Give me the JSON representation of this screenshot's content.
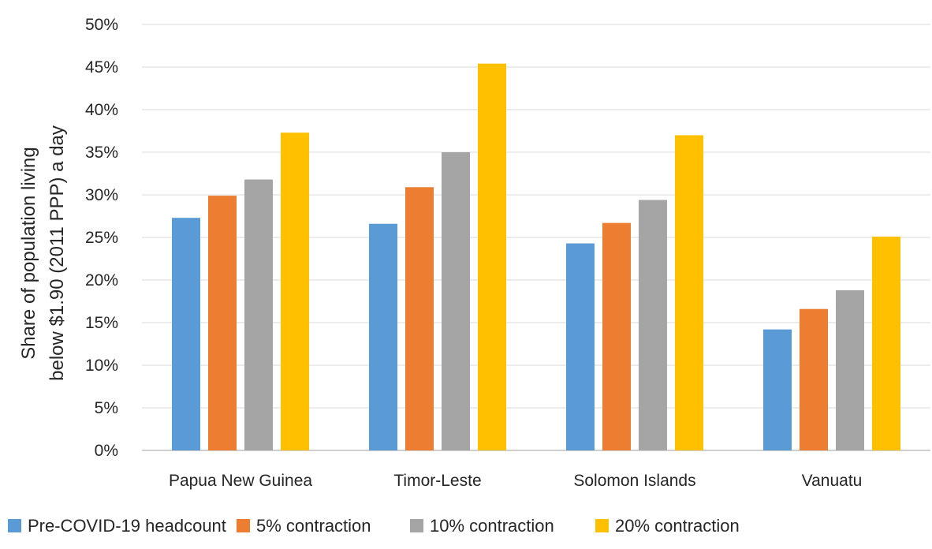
{
  "chart_data": {
    "type": "bar",
    "categories": [
      "Papua New Guinea",
      "Timor-Leste",
      "Solomon Islands",
      "Vanuatu"
    ],
    "series": [
      {
        "name": "Pre-COVID-19 headcount",
        "color": "#5B9BD5",
        "values": [
          27.3,
          26.6,
          24.3,
          14.2
        ]
      },
      {
        "name": "5% contraction",
        "color": "#ED7D31",
        "values": [
          29.9,
          30.9,
          26.7,
          16.6
        ]
      },
      {
        "name": "10% contraction",
        "color": "#A5A5A5",
        "values": [
          31.8,
          35.0,
          29.4,
          18.8
        ]
      },
      {
        "name": "20% contraction",
        "color": "#FFC000",
        "values": [
          37.3,
          45.4,
          37.0,
          25.1
        ]
      }
    ],
    "title": "",
    "xlabel": "",
    "ylabel": [
      "Share of population living",
      "below $1.90 (2011 PPP) a day"
    ],
    "ylim": [
      0,
      50
    ],
    "yticks": [
      0,
      5,
      10,
      15,
      20,
      25,
      30,
      35,
      40,
      45,
      50
    ],
    "y_tick_suffix": "%",
    "grid": true,
    "legend_position": "bottom"
  }
}
